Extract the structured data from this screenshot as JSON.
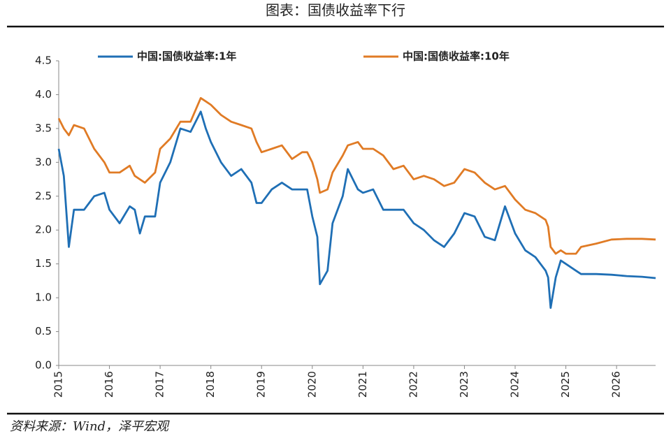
{
  "chart_data": {
    "type": "line",
    "title": "图表：国债收益率下行",
    "source": "资料来源：Wind，泽平宏观",
    "x": [
      2015.0,
      2015.1,
      2015.2,
      2015.3,
      2015.5,
      2015.7,
      2015.9,
      2016.0,
      2016.2,
      2016.4,
      2016.5,
      2016.6,
      2016.7,
      2016.9,
      2017.0,
      2017.2,
      2017.4,
      2017.6,
      2017.8,
      2017.9,
      2018.0,
      2018.2,
      2018.4,
      2018.6,
      2018.8,
      2018.9,
      2019.0,
      2019.2,
      2019.4,
      2019.6,
      2019.8,
      2019.9,
      2020.0,
      2020.1,
      2020.15,
      2020.3,
      2020.4,
      2020.6,
      2020.7,
      2020.9,
      2021.0,
      2021.2,
      2021.4,
      2021.6,
      2021.8,
      2022.0,
      2022.2,
      2022.4,
      2022.6,
      2022.8,
      2023.0,
      2023.2,
      2023.4,
      2023.6,
      2023.8,
      2024.0,
      2024.2,
      2024.4,
      2024.6,
      2024.65,
      2024.7,
      2024.8,
      2024.9,
      2025.0,
      2025.2,
      2025.3,
      2025.6,
      2025.9,
      2026.2,
      2026.5,
      2026.77
    ],
    "series": [
      {
        "name": "中国:国债收益率:1年",
        "color": "#1f6fb5",
        "values": [
          3.2,
          2.8,
          1.75,
          2.3,
          2.3,
          2.5,
          2.55,
          2.3,
          2.1,
          2.35,
          2.3,
          1.95,
          2.2,
          2.2,
          2.7,
          3.0,
          3.5,
          3.45,
          3.75,
          3.5,
          3.3,
          3.0,
          2.8,
          2.9,
          2.7,
          2.4,
          2.4,
          2.6,
          2.7,
          2.6,
          2.6,
          2.6,
          2.2,
          1.9,
          1.2,
          1.4,
          2.1,
          2.5,
          2.9,
          2.6,
          2.55,
          2.6,
          2.3,
          2.3,
          2.3,
          2.1,
          2.0,
          1.85,
          1.75,
          1.95,
          2.25,
          2.2,
          1.9,
          1.85,
          2.35,
          1.95,
          1.7,
          1.6,
          1.4,
          1.3,
          0.85,
          1.3,
          1.55,
          1.5,
          1.4,
          1.35,
          1.35,
          1.34,
          1.32,
          1.31,
          1.29
        ]
      },
      {
        "name": "中国:国债收益率:10年",
        "color": "#e07b25",
        "values": [
          3.65,
          3.5,
          3.4,
          3.55,
          3.5,
          3.2,
          3.0,
          2.85,
          2.85,
          2.95,
          2.8,
          2.75,
          2.7,
          2.85,
          3.2,
          3.35,
          3.6,
          3.6,
          3.95,
          3.9,
          3.85,
          3.7,
          3.6,
          3.55,
          3.5,
          3.3,
          3.15,
          3.2,
          3.25,
          3.05,
          3.15,
          3.15,
          3.0,
          2.75,
          2.55,
          2.6,
          2.85,
          3.1,
          3.25,
          3.3,
          3.2,
          3.2,
          3.1,
          2.9,
          2.95,
          2.75,
          2.8,
          2.75,
          2.65,
          2.7,
          2.9,
          2.85,
          2.7,
          2.6,
          2.65,
          2.45,
          2.3,
          2.25,
          2.15,
          2.05,
          1.75,
          1.65,
          1.7,
          1.65,
          1.65,
          1.75,
          1.8,
          1.86,
          1.87,
          1.87,
          1.86
        ]
      }
    ],
    "xlim": [
      2015,
      2026.77
    ],
    "xticks": [
      2015,
      2016,
      2017,
      2018,
      2019,
      2020,
      2021,
      2022,
      2023,
      2024,
      2025,
      2026
    ],
    "ylim": [
      0,
      4.5
    ],
    "yticks": [
      {
        "value": 0,
        "label": "0.0"
      },
      0.5,
      {
        "value": 1,
        "label": "1.0"
      },
      1.5,
      {
        "value": 2,
        "label": "2.0"
      },
      2.5,
      {
        "value": 3,
        "label": "3.0"
      },
      3.5,
      {
        "value": 4,
        "label": "4.0"
      },
      4.5
    ],
    "grid": false
  }
}
